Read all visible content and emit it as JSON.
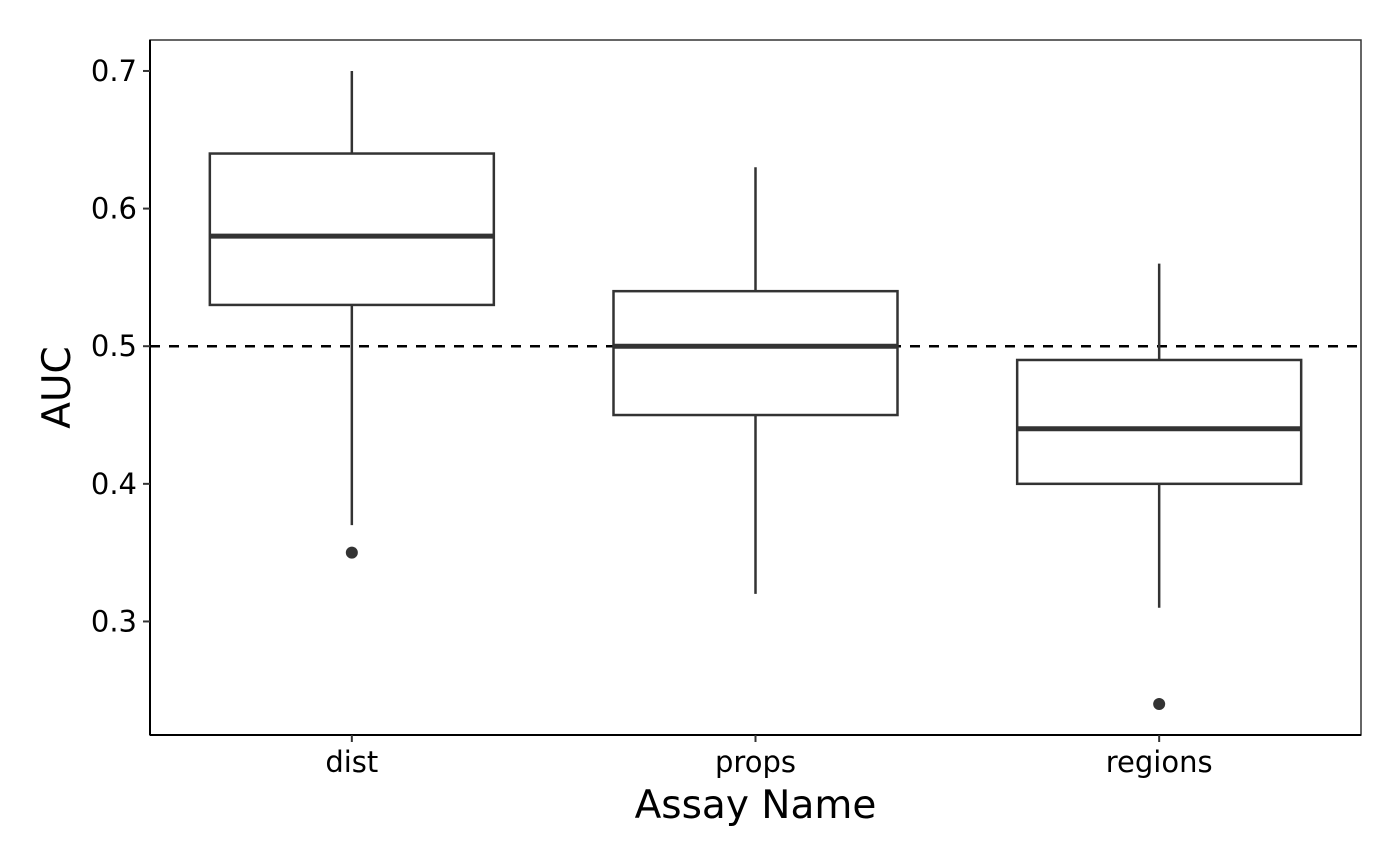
{
  "chart_data": {
    "type": "boxplot",
    "title": "",
    "xlabel": "Assay Name",
    "ylabel": "AUC",
    "categories": [
      "dist",
      "props",
      "regions"
    ],
    "boxes": [
      {
        "category": "dist",
        "whisker_low": 0.37,
        "q1": 0.53,
        "median": 0.58,
        "q3": 0.64,
        "whisker_high": 0.7,
        "outliers": [
          0.35
        ]
      },
      {
        "category": "props",
        "whisker_low": 0.32,
        "q1": 0.45,
        "median": 0.5,
        "q3": 0.54,
        "whisker_high": 0.63,
        "outliers": []
      },
      {
        "category": "regions",
        "whisker_low": 0.31,
        "q1": 0.4,
        "median": 0.44,
        "q3": 0.49,
        "whisker_high": 0.56,
        "outliers": [
          0.24
        ]
      }
    ],
    "reference_line": {
      "y": 0.5,
      "style": "dashed"
    },
    "ylim": [
      0.2175,
      0.7225
    ],
    "yticks": [
      0.3,
      0.4,
      0.5,
      0.6,
      0.7
    ],
    "ytick_labels": [
      "0.3",
      "0.4",
      "0.5",
      "0.6",
      "0.7"
    ],
    "grid": false,
    "legend": "none",
    "colors": {
      "box_stroke": "#333333",
      "box_fill": "#ffffff",
      "axis": "#000000",
      "reference_line": "#000000"
    }
  }
}
